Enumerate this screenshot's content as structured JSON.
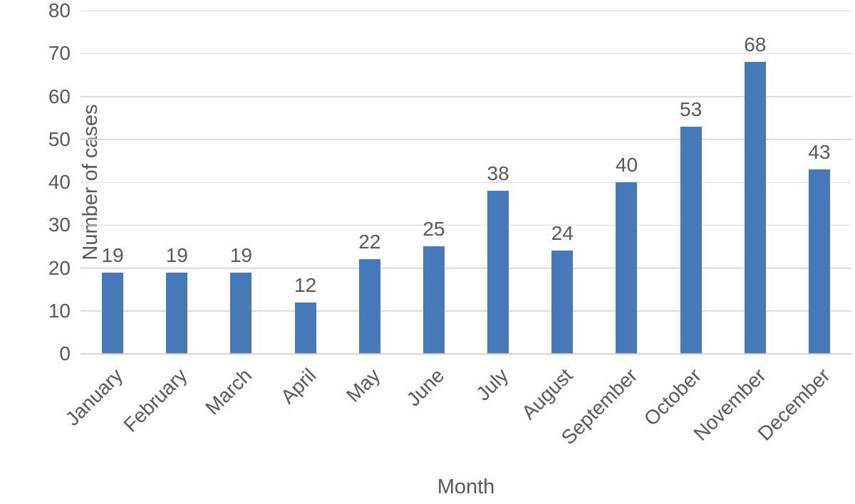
{
  "chart_data": {
    "type": "bar",
    "title": "",
    "xlabel": "Month",
    "ylabel": "Number of cases",
    "categories": [
      "January",
      "February",
      "March",
      "April",
      "May",
      "June",
      "July",
      "August",
      "September",
      "October",
      "November",
      "December"
    ],
    "values": [
      19,
      19,
      19,
      12,
      22,
      25,
      38,
      24,
      40,
      53,
      68,
      43
    ],
    "ylim": [
      0,
      80
    ],
    "ytick_step": 10,
    "ytick_labels": [
      "0",
      "10",
      "20",
      "30",
      "40",
      "50",
      "60",
      "70",
      "80"
    ],
    "grid": true,
    "legend": "none",
    "bar_color": "#4679B9",
    "gridline_color": "#D9D9D9",
    "axisline_color": "#D2D2D2",
    "text_color": "#595959"
  }
}
